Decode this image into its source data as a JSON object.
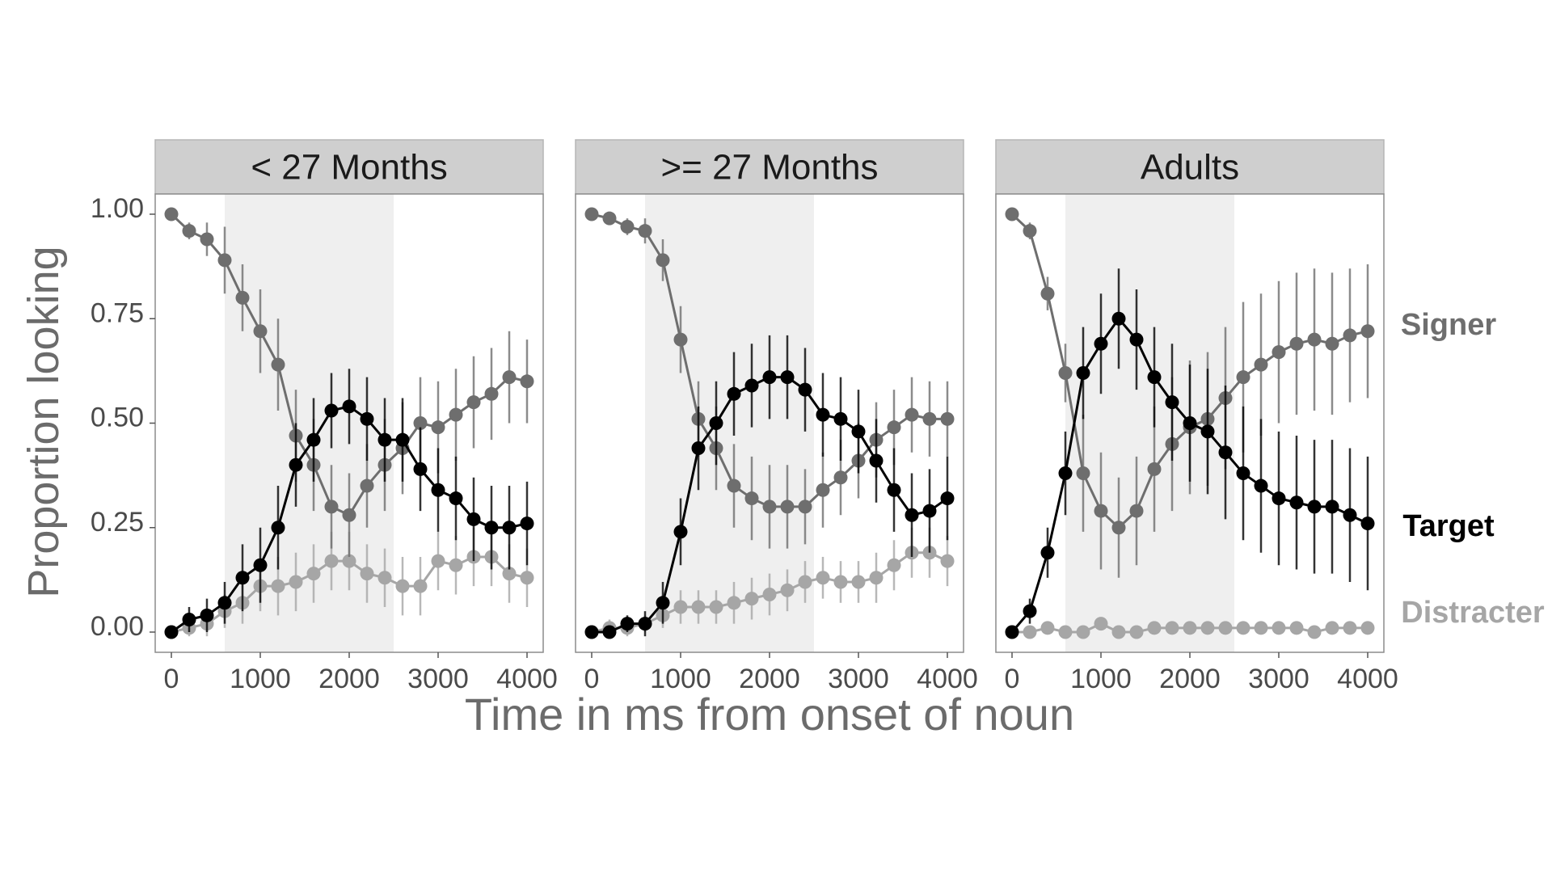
{
  "chart_data": {
    "type": "line",
    "ylabel": "Proportion looking",
    "xlabel": "Time in ms from onset of noun",
    "ylim": [
      0,
      1
    ],
    "xlim": [
      0,
      4000
    ],
    "x_ticks": [
      "0",
      "1000",
      "2000",
      "3000",
      "4000"
    ],
    "y_ticks": [
      "0.00",
      "0.25",
      "0.50",
      "0.75",
      "1.00"
    ],
    "grid": false,
    "legend_placement": "right (direct labels)",
    "colors": {
      "Signer": "#6e6e6e",
      "Target": "#000000",
      "Distracter": "#a6a6a6",
      "shade": "#efefef",
      "strip": "#cfcfcf"
    },
    "x": [
      0,
      200,
      400,
      600,
      800,
      1000,
      1200,
      1400,
      1600,
      1800,
      2000,
      2200,
      2400,
      2600,
      2800,
      3000,
      3200,
      3400,
      3600,
      3800,
      4000
    ],
    "legend": [
      "Signer",
      "Target",
      "Distracter"
    ],
    "panels": [
      {
        "title": "< 27 Months",
        "shaded_region": [
          600,
          2500
        ],
        "series": [
          {
            "name": "Distracter",
            "values": [
              0,
              0.01,
              0.02,
              0.05,
              0.07,
              0.11,
              0.11,
              0.12,
              0.14,
              0.17,
              0.17,
              0.14,
              0.13,
              0.11,
              0.11,
              0.17,
              0.16,
              0.18,
              0.18,
              0.14,
              0.13
            ],
            "err": [
              0,
              0.02,
              0.03,
              0.04,
              0.05,
              0.06,
              0.07,
              0.07,
              0.07,
              0.07,
              0.07,
              0.07,
              0.07,
              0.07,
              0.07,
              0.07,
              0.07,
              0.07,
              0.07,
              0.07,
              0.07
            ]
          },
          {
            "name": "Signer",
            "values": [
              1.0,
              0.96,
              0.94,
              0.89,
              0.8,
              0.72,
              0.64,
              0.47,
              0.4,
              0.3,
              0.28,
              0.35,
              0.4,
              0.44,
              0.5,
              0.49,
              0.52,
              0.55,
              0.57,
              0.61,
              0.6
            ],
            "err": [
              0,
              0.02,
              0.04,
              0.08,
              0.08,
              0.1,
              0.11,
              0.11,
              0.11,
              0.1,
              0.1,
              0.1,
              0.11,
              0.11,
              0.11,
              0.11,
              0.11,
              0.11,
              0.11,
              0.11,
              0.1
            ]
          },
          {
            "name": "Target",
            "values": [
              0,
              0.03,
              0.04,
              0.07,
              0.13,
              0.16,
              0.25,
              0.4,
              0.46,
              0.53,
              0.54,
              0.51,
              0.46,
              0.46,
              0.39,
              0.34,
              0.32,
              0.27,
              0.25,
              0.25,
              0.26
            ],
            "err": [
              0,
              0.03,
              0.04,
              0.05,
              0.08,
              0.09,
              0.1,
              0.1,
              0.1,
              0.09,
              0.09,
              0.1,
              0.1,
              0.1,
              0.1,
              0.1,
              0.1,
              0.1,
              0.1,
              0.1,
              0.1
            ]
          }
        ]
      },
      {
        "title": ">= 27 Months",
        "shaded_region": [
          600,
          2500
        ],
        "series": [
          {
            "name": "Distracter",
            "values": [
              0,
              0.01,
              0.01,
              0.02,
              0.04,
              0.06,
              0.06,
              0.06,
              0.07,
              0.08,
              0.09,
              0.1,
              0.12,
              0.13,
              0.12,
              0.12,
              0.13,
              0.16,
              0.19,
              0.19,
              0.17
            ],
            "err": [
              0,
              0.02,
              0.02,
              0.02,
              0.03,
              0.04,
              0.04,
              0.04,
              0.05,
              0.05,
              0.05,
              0.05,
              0.05,
              0.05,
              0.05,
              0.05,
              0.06,
              0.06,
              0.06,
              0.06,
              0.06
            ]
          },
          {
            "name": "Signer",
            "values": [
              1.0,
              0.99,
              0.97,
              0.96,
              0.89,
              0.7,
              0.51,
              0.44,
              0.35,
              0.32,
              0.3,
              0.3,
              0.3,
              0.34,
              0.37,
              0.41,
              0.46,
              0.49,
              0.52,
              0.51,
              0.51
            ],
            "err": [
              0,
              0.01,
              0.02,
              0.03,
              0.05,
              0.08,
              0.09,
              0.1,
              0.1,
              0.1,
              0.1,
              0.1,
              0.09,
              0.09,
              0.09,
              0.09,
              0.09,
              0.09,
              0.09,
              0.09,
              0.09
            ]
          },
          {
            "name": "Target",
            "values": [
              0,
              0,
              0.02,
              0.02,
              0.07,
              0.24,
              0.44,
              0.5,
              0.57,
              0.59,
              0.61,
              0.61,
              0.58,
              0.52,
              0.51,
              0.48,
              0.41,
              0.34,
              0.28,
              0.29,
              0.32
            ],
            "err": [
              0,
              0.01,
              0.02,
              0.03,
              0.05,
              0.08,
              0.1,
              0.1,
              0.1,
              0.1,
              0.1,
              0.1,
              0.1,
              0.1,
              0.1,
              0.1,
              0.1,
              0.1,
              0.1,
              0.1,
              0.1
            ]
          }
        ]
      },
      {
        "title": "Adults",
        "shaded_region": [
          600,
          2500
        ],
        "series": [
          {
            "name": "Distracter",
            "values": [
              0,
              0,
              0.01,
              0,
              0,
              0.02,
              0,
              0,
              0.01,
              0.01,
              0.01,
              0.01,
              0.01,
              0.01,
              0.01,
              0.01,
              0.01,
              0,
              0.01,
              0.01,
              0.01
            ],
            "err": [
              0,
              0.01,
              0.01,
              0.01,
              0.01,
              0.01,
              0.01,
              0.01,
              0.01,
              0.01,
              0.01,
              0.01,
              0.01,
              0.01,
              0.01,
              0.01,
              0.01,
              0.01,
              0.01,
              0.01,
              0.01
            ]
          },
          {
            "name": "Signer",
            "values": [
              1.0,
              0.96,
              0.81,
              0.62,
              0.38,
              0.29,
              0.25,
              0.29,
              0.39,
              0.45,
              0.49,
              0.51,
              0.56,
              0.61,
              0.64,
              0.67,
              0.69,
              0.7,
              0.69,
              0.71,
              0.72
            ],
            "err": [
              0,
              0.02,
              0.04,
              0.07,
              0.14,
              0.14,
              0.12,
              0.13,
              0.15,
              0.16,
              0.16,
              0.16,
              0.17,
              0.18,
              0.17,
              0.17,
              0.17,
              0.17,
              0.17,
              0.16,
              0.16
            ]
          },
          {
            "name": "Target",
            "values": [
              0,
              0.05,
              0.19,
              0.38,
              0.62,
              0.69,
              0.75,
              0.7,
              0.61,
              0.55,
              0.5,
              0.48,
              0.43,
              0.38,
              0.35,
              0.32,
              0.31,
              0.3,
              0.3,
              0.28,
              0.26
            ],
            "err": [
              0,
              0.03,
              0.06,
              0.1,
              0.11,
              0.12,
              0.12,
              0.12,
              0.12,
              0.14,
              0.14,
              0.15,
              0.16,
              0.16,
              0.16,
              0.16,
              0.16,
              0.16,
              0.16,
              0.16,
              0.16
            ]
          }
        ]
      }
    ]
  }
}
